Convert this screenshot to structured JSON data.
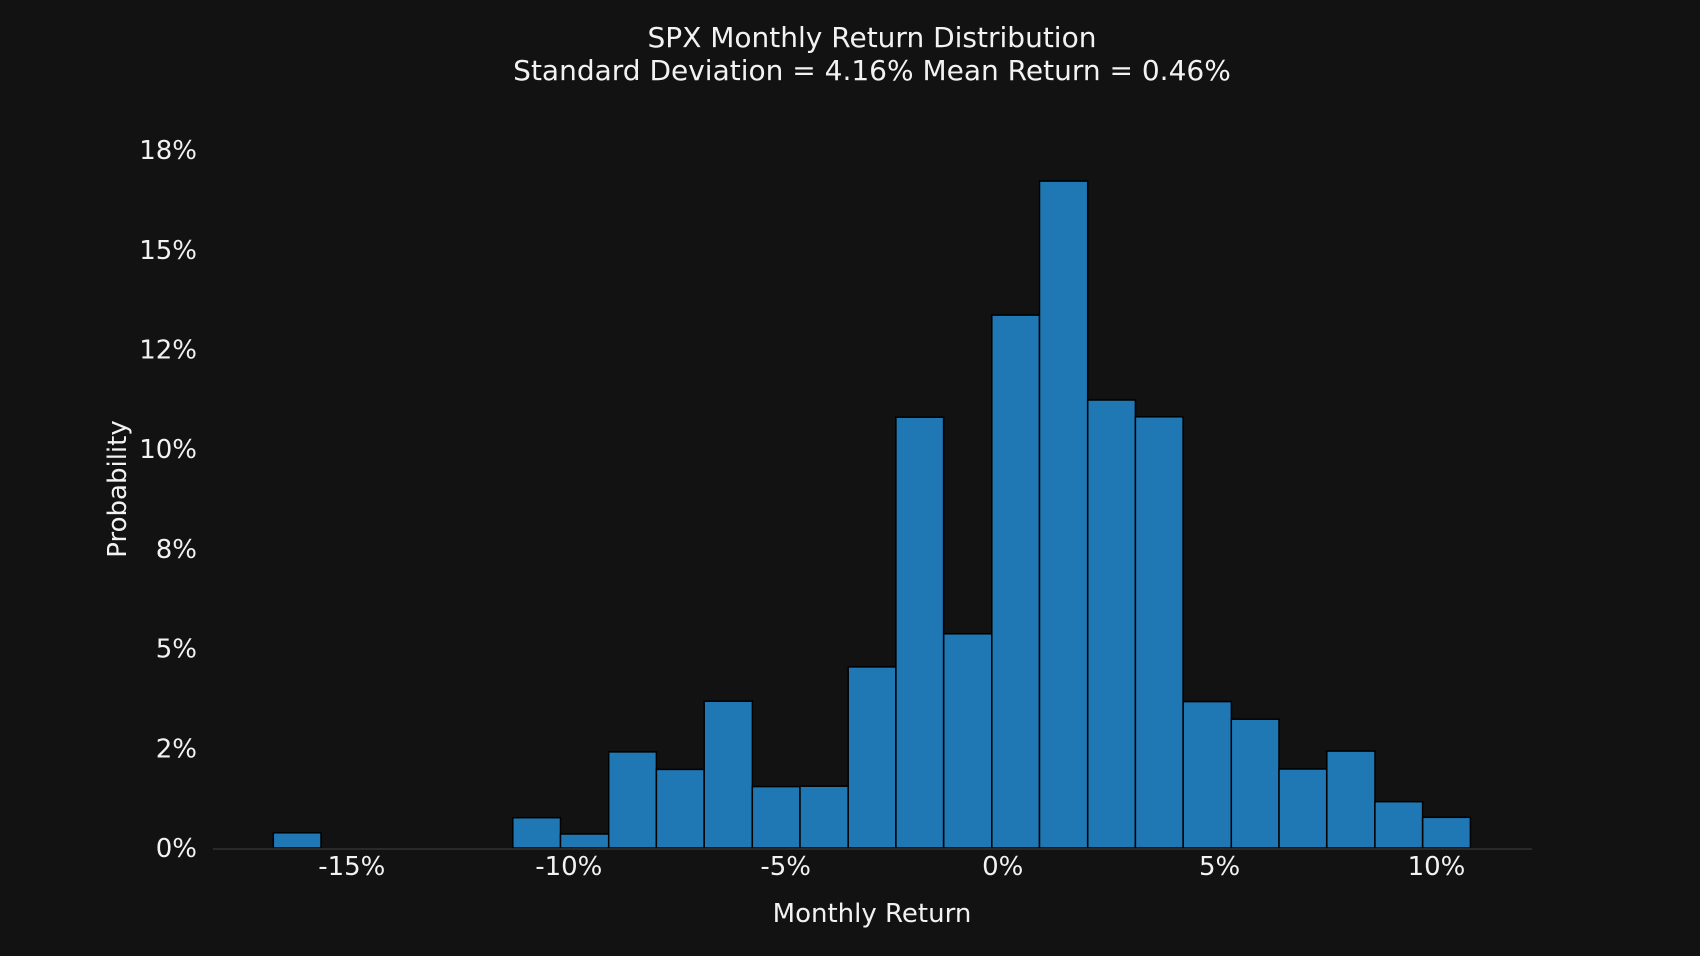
{
  "chart_data": {
    "type": "bar",
    "subtype": "histogram",
    "title": "SPX Monthly Return Distribution",
    "subtitle": "Standard Deviation = 4.16% Mean Return = 0.46%",
    "xlabel": "Monthly Return",
    "ylabel": "Probability",
    "stats": {
      "standard_deviation_pct": 4.16,
      "mean_return_pct": 0.46
    },
    "bin_edges_pct": [
      -16.81,
      -15.71,
      -14.6,
      -13.5,
      -12.39,
      -11.29,
      -10.19,
      -9.08,
      -7.98,
      -6.88,
      -5.77,
      -4.67,
      -3.56,
      -2.46,
      -1.36,
      -0.25,
      0.85,
      1.96,
      3.06,
      4.16,
      5.27,
      6.37,
      7.47,
      8.58,
      9.68,
      10.78
    ],
    "probabilities_pct": [
      0.38,
      0,
      0,
      0,
      0,
      0.76,
      0.35,
      2.41,
      1.97,
      3.68,
      1.54,
      1.55,
      4.54,
      10.8,
      5.37,
      13.36,
      16.72,
      11.23,
      10.81,
      3.67,
      3.23,
      1.98,
      2.43,
      1.16,
      0.77
    ],
    "x_ticks": {
      "values": [
        -15,
        -10,
        -5,
        0,
        5,
        10
      ],
      "labels": [
        "-15%",
        "-10%",
        "-5%",
        "0%",
        "5%",
        "10%"
      ]
    },
    "y_ticks": {
      "values": [
        0,
        2.5,
        5,
        7.5,
        10,
        12.5,
        15,
        17.5
      ],
      "labels": [
        "0%",
        "2%",
        "5%",
        "8%",
        "10%",
        "12%",
        "15%",
        "18%"
      ]
    },
    "xlim": [
      -18.2,
      12.2
    ],
    "ylim": [
      0,
      18
    ],
    "grid": false,
    "legend": null,
    "colors": {
      "bar_fill": "#1f77b4",
      "bar_edge": "#000000",
      "background": "#121212",
      "text": "#f2f2f2",
      "spine": "#2a2a2a"
    }
  }
}
